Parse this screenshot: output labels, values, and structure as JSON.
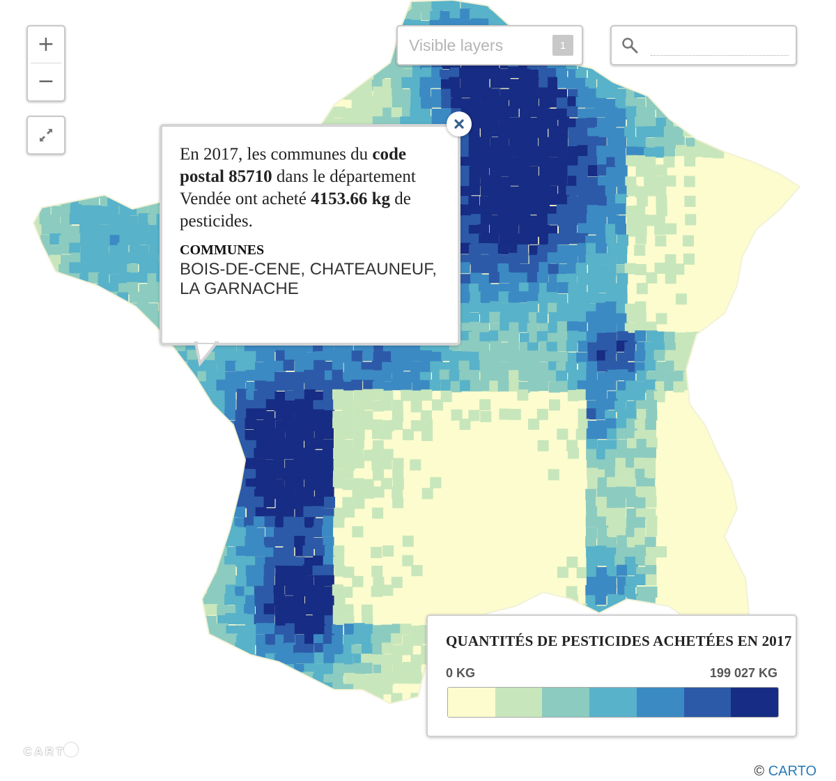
{
  "controls": {
    "zoom_in": "+",
    "zoom_out": "−",
    "layers_label": "Visible layers",
    "layers_count": "1",
    "search_value": ""
  },
  "popup": {
    "desc_1": "En 2017, les communes du ",
    "desc_bold_1": "code postal 85710",
    "desc_2": " dans le département Vendée ont acheté ",
    "desc_bold_2": "4153.66 kg",
    "desc_3": " de pesticides.",
    "communes_title": "COMMUNES",
    "communes_value": "BOIS-DE-CENE, CHATEAUNEUF, LA GARNACHE",
    "close": "×"
  },
  "legend": {
    "title": "QUANTITÉS DE PESTICIDES ACHETÉES EN 2017",
    "min_label": "0 KG",
    "max_label": "199 027 KG",
    "colors": [
      "#fcfcce",
      "#c8e6bb",
      "#8ccbc0",
      "#58b2c9",
      "#3c8ac3",
      "#2c5aa8",
      "#172c84"
    ]
  },
  "footer": {
    "logo": "CART",
    "attribution_prefix": "© ",
    "attribution_link": "CARTO"
  }
}
